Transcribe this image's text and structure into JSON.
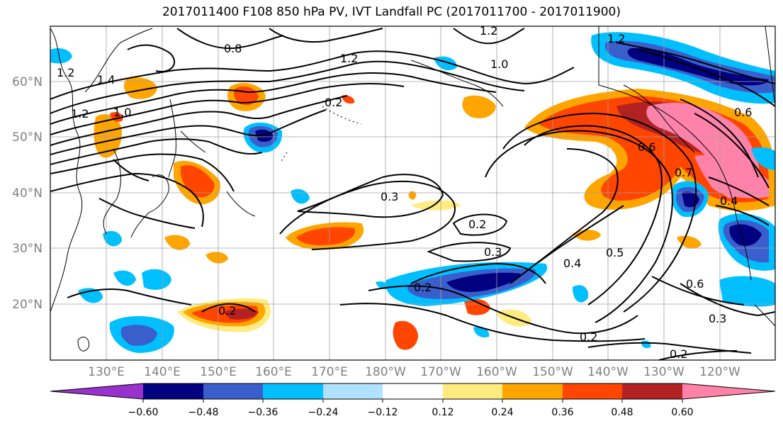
{
  "title": "2017011400 F108 850 hPa PV, IVT Landfall PC (2017011700 - 2017011900)",
  "lat_labels": [
    "60°N",
    "50°N",
    "40°N",
    "30°N",
    "20°N"
  ],
  "lon_labels": [
    "130°E",
    "140°E",
    "150°E",
    "160°E",
    "170°E",
    "180°W",
    "170°W",
    "160°W",
    "150°W",
    "140°W",
    "130°W",
    "120°W"
  ],
  "colorbar": {
    "ticks": [
      "−0.60",
      "−0.48",
      "−0.36",
      "−0.24",
      "−0.12",
      "0.12",
      "0.24",
      "0.36",
      "0.48",
      "0.60"
    ],
    "colors": [
      "#9932cc",
      "#000080",
      "#3a5fcd",
      "#00bfff",
      "#b0e2ff",
      "#ffffff",
      "#ffeb80",
      "#ffa500",
      "#ff4500",
      "#b22222",
      "#ff82ab"
    ]
  },
  "contour_labels": [
    "0.8",
    "1.2",
    "1.4",
    "1.2",
    "1.0",
    "0.2",
    "1.2",
    "1.0",
    "0.3",
    "0.2",
    "0.3",
    "0.2",
    "0.4",
    "0.5",
    "0.6",
    "0.2",
    "0.2",
    "0.6",
    "0.7",
    "0.4",
    "0.3",
    "0.2",
    "1.2",
    "1.2",
    "0.6"
  ]
}
